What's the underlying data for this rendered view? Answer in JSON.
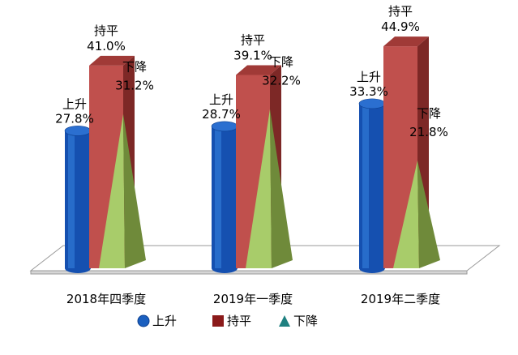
{
  "chart_data": {
    "type": "bar",
    "categories": [
      "2018年四季度",
      "2019年一季度",
      "2019年二季度"
    ],
    "series": [
      {
        "name": "上升",
        "values": [
          27.8,
          28.7,
          33.3
        ],
        "labels": [
          "27.8%",
          "28.7%",
          "33.3%"
        ],
        "color": "#1a5fbf",
        "shape": "cylinder"
      },
      {
        "name": "持平",
        "values": [
          41.0,
          39.1,
          44.9
        ],
        "labels": [
          "41.0%",
          "39.1%",
          "44.9%"
        ],
        "color": "#c0504d",
        "shape": "box"
      },
      {
        "name": "下降",
        "values": [
          31.2,
          32.2,
          21.8
        ],
        "labels": [
          "31.2%",
          "32.2%",
          "21.8%"
        ],
        "color": "#9bbb59",
        "shape": "pyramid"
      }
    ],
    "legend": {
      "position": "bottom",
      "items": [
        {
          "label": "上升",
          "marker": "circle",
          "color": "#1a5fbf"
        },
        {
          "label": "持平",
          "marker": "square",
          "color": "#8b1a1a"
        },
        {
          "label": "下降",
          "marker": "triangle",
          "color": "#1e8080"
        }
      ]
    },
    "title": "",
    "xlabel": "",
    "ylabel": "",
    "grid": false
  }
}
